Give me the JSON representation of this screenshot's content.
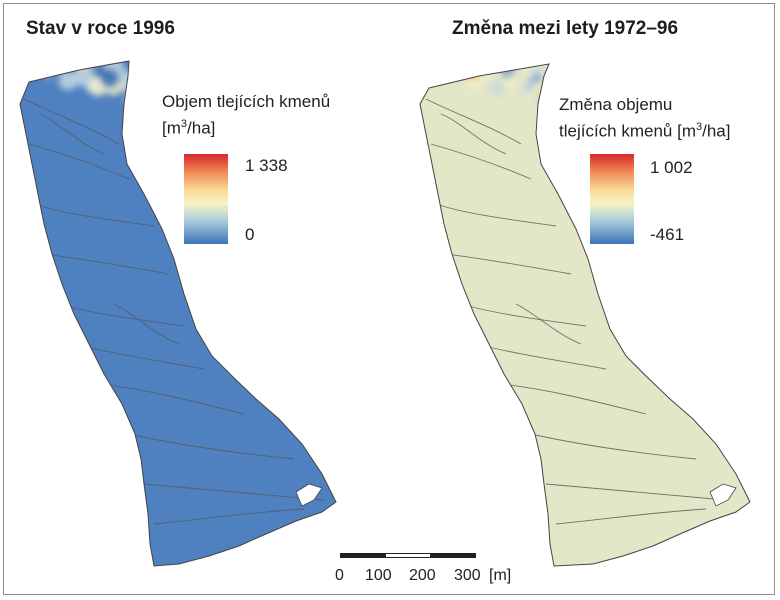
{
  "panels": [
    {
      "title": "Stav v roce 1996",
      "legend": {
        "title_line1": "Objem tlejících kmenů",
        "title_unit_prefix": "[m",
        "title_unit_sup": "3",
        "title_unit_suffix": "/ha]",
        "max_label": "1 338",
        "min_label": "0"
      }
    },
    {
      "title": "Změna mezi lety 1972–96",
      "legend": {
        "title_line1": "Změna objemu",
        "title_line2_prefix": "tlejících kmenů [m",
        "title_unit_sup": "3",
        "title_unit_suffix": "/ha]",
        "max_label": "1 002",
        "min_label": "-461"
      }
    }
  ],
  "colors": {
    "ramp_high": "#d7262d",
    "ramp_mid": "#f6f4c5",
    "ramp_low": "#3a74b6",
    "stream_lines": "#555555"
  },
  "scalebar": {
    "ticks": [
      "0",
      "100",
      "200",
      "300"
    ],
    "unit": "[m]"
  }
}
